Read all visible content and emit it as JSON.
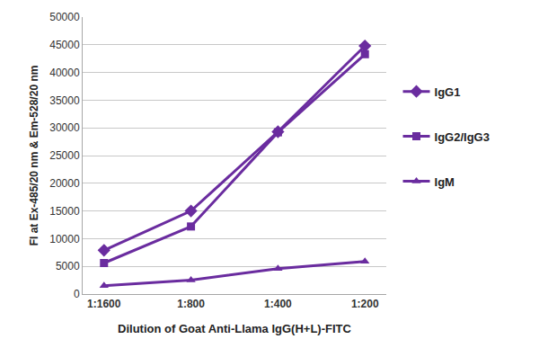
{
  "chart_data": {
    "type": "line",
    "x_label": "Dilution of Goat Anti-Llama IgG(H+L)-FITC",
    "y_label": "FI at Ex-485/20 nm & Em-528/20 nm",
    "categories": [
      "1:1600",
      "1:800",
      "1:400",
      "1:200"
    ],
    "series": [
      {
        "name": "IgG1",
        "color": "#6a2c9f",
        "marker": "diamond",
        "values": [
          7900,
          15000,
          29300,
          44800
        ]
      },
      {
        "name": "IgG2/IgG3",
        "color": "#6a2c9f",
        "marker": "square",
        "values": [
          5600,
          12200,
          29200,
          43300
        ]
      },
      {
        "name": "IgM",
        "color": "#6a2c9f",
        "marker": "triangle",
        "values": [
          1500,
          2500,
          4600,
          5900
        ]
      }
    ],
    "ylim": [
      0,
      50000
    ],
    "yticks": [
      0,
      5000,
      10000,
      15000,
      20000,
      25000,
      30000,
      35000,
      40000,
      45000,
      50000
    ],
    "grid": true,
    "legend": "right"
  }
}
